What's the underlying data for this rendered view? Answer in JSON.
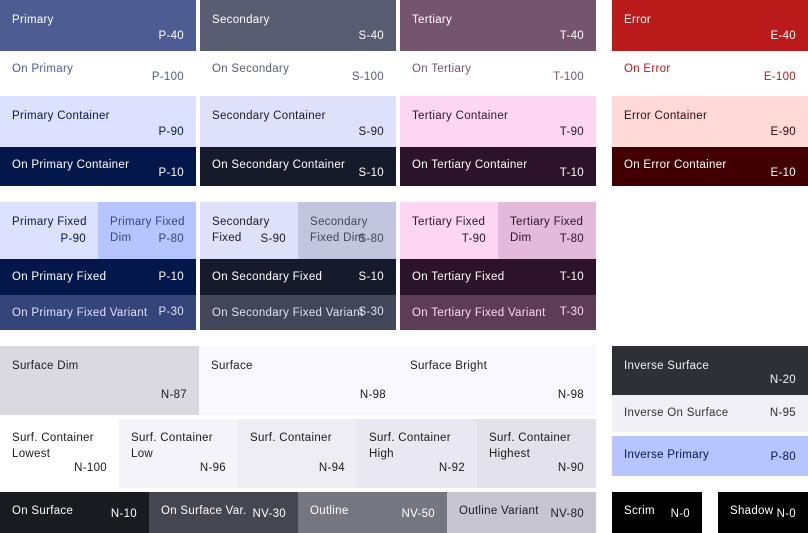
{
  "primary_group": {
    "primary": {
      "name": "Primary",
      "tone": "P-40"
    },
    "on_primary": {
      "name": "On Primary",
      "tone": "P-100"
    },
    "primary_container": {
      "name": "Primary Container",
      "tone": "P-90"
    },
    "on_primary_container": {
      "name": "On Primary Container",
      "tone": "P-10"
    }
  },
  "secondary_group": {
    "secondary": {
      "name": "Secondary",
      "tone": "S-40"
    },
    "on_secondary": {
      "name": "On Secondary",
      "tone": "S-100"
    },
    "secondary_container": {
      "name": "Secondary Container",
      "tone": "S-90"
    },
    "on_secondary_container": {
      "name": "On Secondary Container",
      "tone": "S-10"
    }
  },
  "tertiary_group": {
    "tertiary": {
      "name": "Tertiary",
      "tone": "T-40"
    },
    "on_tertiary": {
      "name": "On Tertiary",
      "tone": "T-100"
    },
    "tertiary_container": {
      "name": "Tertiary Container",
      "tone": "T-90"
    },
    "on_tertiary_container": {
      "name": "On Tertiary Container",
      "tone": "T-10"
    }
  },
  "error_group": {
    "error": {
      "name": "Error",
      "tone": "E-40"
    },
    "on_error": {
      "name": "On Error",
      "tone": "E-100"
    },
    "error_container": {
      "name": "Error Container",
      "tone": "E-90"
    },
    "on_error_container": {
      "name": "On Error Container",
      "tone": "E-10"
    }
  },
  "fixed_group": {
    "primary_fixed": {
      "name": "Primary Fixed",
      "tone": "P-90"
    },
    "primary_fixed_dim": {
      "name": "Primary Fixed Dim",
      "tone": "P-80"
    },
    "on_primary_fixed": {
      "name": "On Primary Fixed",
      "tone": "P-10"
    },
    "on_primary_fixed_variant": {
      "name": "On Primary Fixed Variant",
      "tone": "P-30"
    },
    "secondary_fixed": {
      "name": "Secondary Fixed",
      "tone": "S-90"
    },
    "secondary_fixed_dim": {
      "name": "Secondary Fixed Dim",
      "tone": "S-80"
    },
    "on_secondary_fixed": {
      "name": "On Secondary Fixed",
      "tone": "S-10"
    },
    "on_secondary_fixed_variant": {
      "name": "On Secondary Fixed Variant",
      "tone": "S-30"
    },
    "tertiary_fixed": {
      "name": "Tertiary Fixed",
      "tone": "T-90"
    },
    "tertiary_fixed_dim": {
      "name": "Tertiary Fixed Dim",
      "tone": "T-80"
    },
    "on_tertiary_fixed": {
      "name": "On Tertiary Fixed",
      "tone": "T-10"
    },
    "on_tertiary_fixed_variant": {
      "name": "On Tertiary Fixed Variant",
      "tone": "T-30"
    }
  },
  "surface_group": {
    "surface_dim": {
      "name": "Surface Dim",
      "tone": "N-87"
    },
    "surface": {
      "name": "Surface",
      "tone": "N-98"
    },
    "surface_bright": {
      "name": "Surface Bright",
      "tone": "N-98"
    },
    "container_lowest": {
      "name": "Surf. Container Lowest",
      "tone": "N-100"
    },
    "container_low": {
      "name": "Surf. Container Low",
      "tone": "N-96"
    },
    "container": {
      "name": "Surf. Container",
      "tone": "N-94"
    },
    "container_high": {
      "name": "Surf. Container High",
      "tone": "N-92"
    },
    "container_highest": {
      "name": "Surf. Container Highest",
      "tone": "N-90"
    },
    "on_surface": {
      "name": "On Surface",
      "tone": "N-10"
    },
    "on_surface_variant": {
      "name": "On Surface Var.",
      "tone": "NV-30"
    },
    "outline": {
      "name": "Outline",
      "tone": "NV-50"
    },
    "outline_variant": {
      "name": "Outline Variant",
      "tone": "NV-80"
    }
  },
  "inverse_group": {
    "inverse_surface": {
      "name": "Inverse Surface",
      "tone": "N-20"
    },
    "inverse_on_surface": {
      "name": "Inverse On Surface",
      "tone": "N-95"
    },
    "inverse_primary": {
      "name": "Inverse Primary",
      "tone": "P-80"
    },
    "scrim": {
      "name": "Scrim",
      "tone": "N-0"
    },
    "shadow": {
      "name": "Shadow",
      "tone": "N-0"
    }
  },
  "colors": {
    "primary": "#4d5c92",
    "on_primary": "#ffffff",
    "primary_container": "#dce1ff",
    "on_primary_container": "#03174b",
    "secondary": "#595d72",
    "on_secondary": "#ffffff",
    "secondary_container": "#dee1f9",
    "on_secondary_container": "#161b2c",
    "tertiary": "#75546f",
    "on_tertiary": "#ffffff",
    "tertiary_container": "#ffd7f5",
    "on_tertiary_container": "#2c122a",
    "error": "#ba1a1a",
    "on_error": "#ffffff",
    "error_container": "#ffdad6",
    "on_error_container": "#410002",
    "primary_fixed_dim": "#b6c4ff",
    "on_primary_fixed_variant": "#354479",
    "secondary_fixed_dim": "#c2c5dd",
    "on_secondary_fixed_variant": "#424659",
    "tertiary_fixed_dim": "#e3bada",
    "on_tertiary_fixed_variant": "#5c3c57",
    "surface_dim": "#dad9e0",
    "surface": "#faf8ff",
    "container_low": "#f4f3fa",
    "container": "#eeedf4",
    "container_high": "#e9e7ef",
    "container_highest": "#e3e1e9",
    "on_surface": "#1a1b21",
    "on_surface_variant": "#45464f",
    "outline": "#767680",
    "outline_variant": "#c6c5d0",
    "inverse_surface": "#2f3036",
    "inverse_on_surface": "#f1f0f7",
    "scrim": "#000000"
  }
}
